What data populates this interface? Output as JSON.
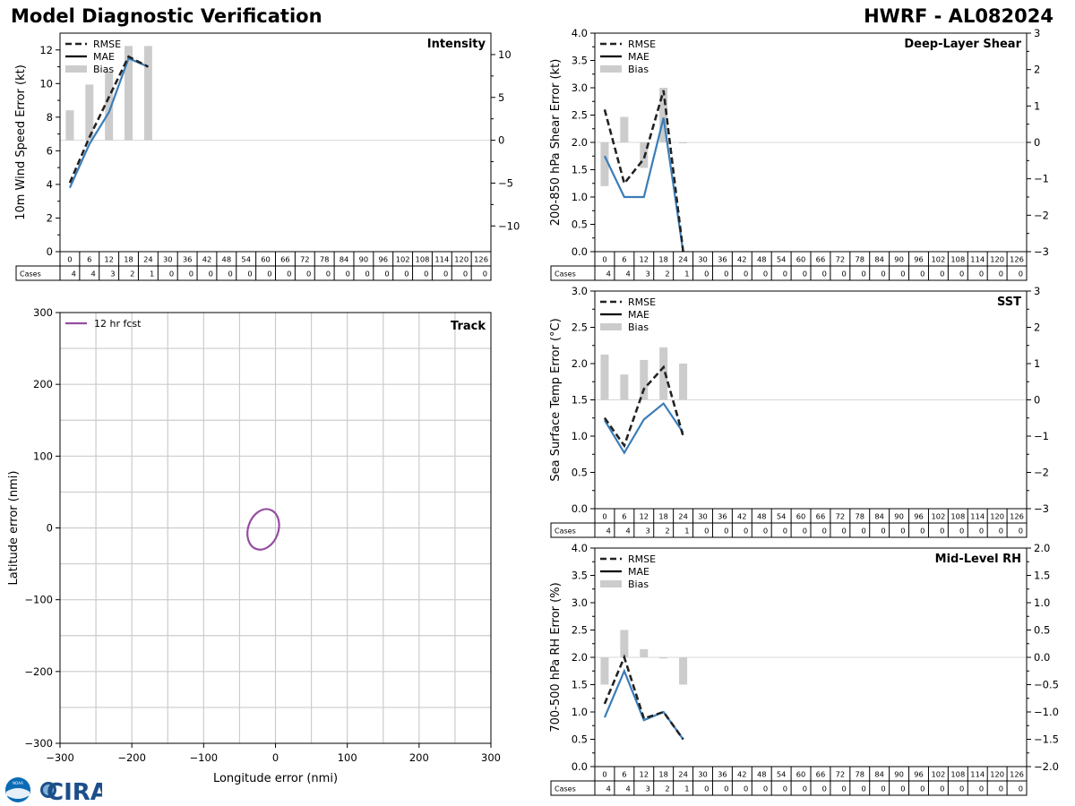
{
  "header": {
    "title_left": "Model Diagnostic Verification",
    "title_right": "HWRF - AL082024"
  },
  "colors": {
    "rmse": "#222222",
    "mae": "#3a7db8",
    "bias": "#cccccc",
    "track": "#954ea0",
    "grid": "#cccccc"
  },
  "lead_hours": [
    "0",
    "6",
    "12",
    "18",
    "24",
    "30",
    "36",
    "42",
    "48",
    "54",
    "60",
    "66",
    "72",
    "78",
    "84",
    "90",
    "96",
    "102",
    "108",
    "114",
    "120",
    "126"
  ],
  "cases_label": "Cases",
  "cases": [
    "4",
    "4",
    "3",
    "2",
    "1",
    "0",
    "0",
    "0",
    "0",
    "0",
    "0",
    "0",
    "0",
    "0",
    "0",
    "0",
    "0",
    "0",
    "0",
    "0",
    "0",
    "0"
  ],
  "legend": {
    "rmse": "RMSE",
    "mae": "MAE",
    "bias": "Bias"
  },
  "logo": {
    "text": "CIRA"
  },
  "chart_data": [
    {
      "id": "intensity",
      "type": "line",
      "title": "Intensity",
      "ylabel": "10m Wind Speed Error (kt)",
      "ylim": [
        0,
        13
      ],
      "yticks": [
        0,
        2,
        4,
        6,
        8,
        10,
        12
      ],
      "y2lim": [
        -13,
        12.5
      ],
      "y2ticks": [
        -10,
        -5,
        0,
        5,
        10
      ],
      "x": [
        0,
        6,
        12,
        18,
        24
      ],
      "series": [
        {
          "name": "RMSE",
          "style": "dashed",
          "values": [
            4.1,
            6.8,
            9.2,
            11.6,
            11.0
          ]
        },
        {
          "name": "MAE",
          "style": "solid",
          "values": [
            3.8,
            6.4,
            8.3,
            11.5,
            11.0
          ]
        },
        {
          "name": "Bias",
          "style": "bar",
          "axis": "right",
          "values": [
            3.5,
            6.5,
            8.0,
            11.0,
            11.0
          ]
        }
      ]
    },
    {
      "id": "shear",
      "type": "line",
      "title": "Deep-Layer Shear",
      "ylabel": "200-850 hPa Shear Error (kt)",
      "ylim": [
        0,
        4.0
      ],
      "yticks": [
        0.0,
        0.5,
        1.0,
        1.5,
        2.0,
        2.5,
        3.0,
        3.5,
        4.0
      ],
      "y2lim": [
        -3,
        3
      ],
      "y2ticks": [
        -3,
        -2,
        -1,
        0,
        1,
        2,
        3
      ],
      "x": [
        0,
        6,
        12,
        18,
        24
      ],
      "series": [
        {
          "name": "RMSE",
          "style": "dashed",
          "values": [
            2.6,
            1.25,
            1.7,
            2.95,
            0.0
          ]
        },
        {
          "name": "MAE",
          "style": "solid",
          "values": [
            1.75,
            1.0,
            1.0,
            2.45,
            0.0
          ]
        },
        {
          "name": "Bias",
          "style": "bar",
          "axis": "right",
          "values": [
            -1.2,
            0.7,
            -0.7,
            1.5,
            0.0
          ]
        }
      ]
    },
    {
      "id": "sst",
      "type": "line",
      "title": "SST",
      "ylabel": "Sea Surface Temp Error (°C)",
      "ylim": [
        0,
        3.0
      ],
      "yticks": [
        0.0,
        0.5,
        1.0,
        1.5,
        2.0,
        2.5,
        3.0
      ],
      "y2lim": [
        -3,
        3
      ],
      "y2ticks": [
        -3,
        -2,
        -1,
        0,
        1,
        2,
        3
      ],
      "x": [
        0,
        6,
        12,
        18,
        24
      ],
      "series": [
        {
          "name": "RMSE",
          "style": "dashed",
          "values": [
            1.25,
            0.87,
            1.65,
            1.95,
            1.0
          ]
        },
        {
          "name": "MAE",
          "style": "solid",
          "values": [
            1.22,
            0.77,
            1.23,
            1.45,
            1.05
          ]
        },
        {
          "name": "Bias",
          "style": "bar",
          "axis": "right",
          "values": [
            1.25,
            0.7,
            1.1,
            1.45,
            1.0
          ]
        }
      ]
    },
    {
      "id": "rh",
      "type": "line",
      "title": "Mid-Level RH",
      "ylabel": "700-500 hPa RH Error (%)",
      "ylim": [
        0,
        4.0
      ],
      "yticks": [
        0.0,
        0.5,
        1.0,
        1.5,
        2.0,
        2.5,
        3.0,
        3.5,
        4.0
      ],
      "y2lim": [
        -2.0,
        2.0
      ],
      "y2ticks": [
        -2.0,
        -1.5,
        -1.0,
        -0.5,
        0.0,
        0.5,
        1.0,
        1.5,
        2.0
      ],
      "x": [
        0,
        6,
        12,
        18,
        24
      ],
      "series": [
        {
          "name": "RMSE",
          "style": "dashed",
          "values": [
            1.15,
            2.0,
            0.88,
            1.0,
            0.5
          ]
        },
        {
          "name": "MAE",
          "style": "solid",
          "values": [
            0.9,
            1.75,
            0.85,
            1.0,
            0.5
          ]
        },
        {
          "name": "Bias",
          "style": "bar",
          "axis": "right",
          "values": [
            -0.5,
            0.5,
            0.15,
            -0.02,
            -0.5
          ]
        }
      ]
    },
    {
      "id": "track",
      "type": "scatter",
      "title": "Track",
      "xlabel": "Longitude error (nmi)",
      "ylabel": "Latitude error (nmi)",
      "xlim": [
        -300,
        300
      ],
      "ylim": [
        -300,
        300
      ],
      "xticks": [
        -300,
        -200,
        -100,
        0,
        100,
        200,
        300
      ],
      "yticks": [
        -300,
        -200,
        -100,
        0,
        100,
        200,
        300
      ],
      "grid": true,
      "legend_position": "top-left",
      "series": [
        {
          "name": "12 hr fcst",
          "shape": "ellipse",
          "center": [
            -17,
            -2
          ],
          "semi_axis_x": 21,
          "semi_axis_y": 29,
          "rotation_deg": 20
        }
      ]
    }
  ]
}
